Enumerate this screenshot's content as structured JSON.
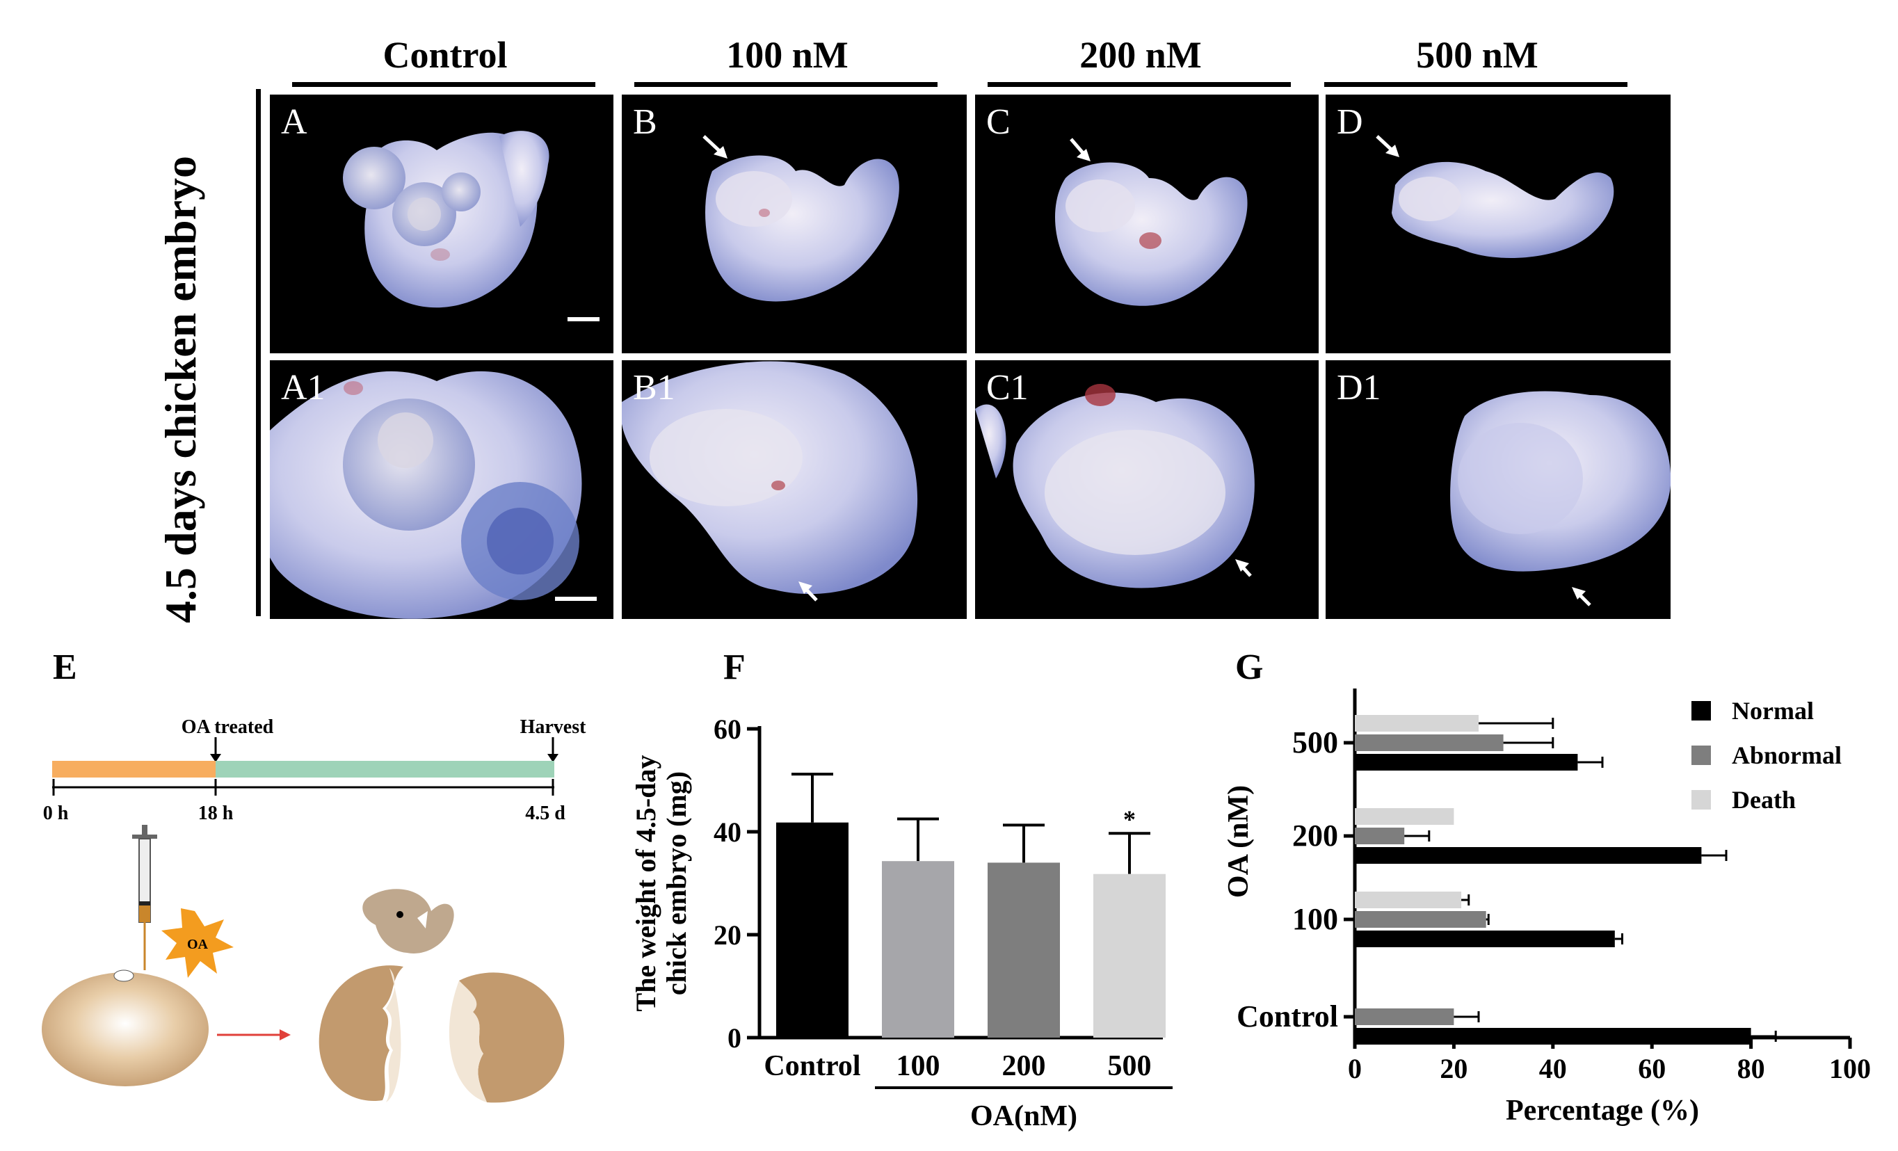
{
  "side_label": "4.5 days chicken embryo",
  "columns": [
    "Control",
    "100 nM",
    "200 nM",
    "500 nM"
  ],
  "panels_top": [
    "A",
    "B",
    "C",
    "D"
  ],
  "panels_bottom": [
    "A1",
    "B1",
    "C1",
    "D1"
  ],
  "panel_E": {
    "letter": "E",
    "events": [
      "OA treated",
      "Harvest"
    ],
    "ticks": [
      "0 h",
      "18 h",
      "4.5 d"
    ],
    "oa_badge": "OA",
    "colors": {
      "phase1": "#F7AD5F",
      "phase2": "#9ED3B8",
      "arrow": "#E0403A",
      "shell": "#C29A6E"
    }
  },
  "chart_data": [
    {
      "panel": "F",
      "type": "bar",
      "categories": [
        "Control",
        "100",
        "200",
        "500"
      ],
      "values": [
        41.8,
        34.3,
        34.0,
        31.8
      ],
      "errors": [
        9.4,
        8.2,
        7.3,
        7.9
      ],
      "colors": [
        "#000000",
        "#A6A6AA",
        "#7E7E7E",
        "#D6D6D6"
      ],
      "annotations": [
        {
          "category": "500",
          "text": "*"
        }
      ],
      "ylabel": "The weight of 4.5-day chick embryo (mg)",
      "xlabel": "OA(nM)",
      "yticks": [
        0,
        20,
        40,
        60
      ],
      "ylim": [
        0,
        60
      ]
    },
    {
      "panel": "G",
      "type": "bar",
      "orientation": "horizontal",
      "categories": [
        "500",
        "200",
        "100",
        "Control"
      ],
      "series": [
        {
          "name": "Normal",
          "color": "#000000",
          "values": [
            45,
            70,
            52.5,
            80
          ],
          "errors": [
            5,
            5,
            1.5,
            5
          ]
        },
        {
          "name": "Abnormal",
          "color": "#7E7E7E",
          "values": [
            30,
            10,
            26.5,
            20
          ],
          "errors": [
            10,
            5,
            0.5,
            5
          ]
        },
        {
          "name": "Death",
          "color": "#D6D6D6",
          "values": [
            25,
            20,
            21.5,
            0
          ],
          "errors": [
            15,
            0,
            1.5,
            0
          ]
        }
      ],
      "xlabel": "Percentage (%)",
      "ylabel": "OA (nM)",
      "xticks": [
        0,
        20,
        40,
        60,
        80,
        100
      ],
      "xlim": [
        0,
        100
      ],
      "legend_position": "top-right"
    }
  ]
}
